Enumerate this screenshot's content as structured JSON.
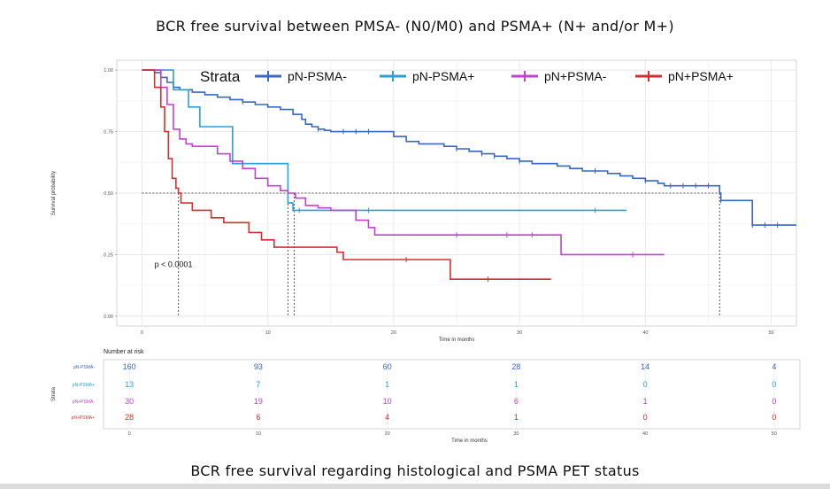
{
  "titles": {
    "top": "BCR free survival between PMSA- (N0/M0) and PSMA+ (N+ and/or M+)",
    "bottom": "BCR free survival regarding histological and PSMA PET status"
  },
  "chart_data": [
    {
      "type": "line",
      "subtype": "kaplan-meier",
      "xlabel": "Time in months",
      "ylabel": "Survival probability",
      "xlim": [
        -2,
        52
      ],
      "ylim": [
        0,
        1
      ],
      "xticks": [
        "0",
        "10",
        "20",
        "30",
        "40",
        "50"
      ],
      "yticks": [
        "0.00",
        "0.25",
        "0.50",
        "0.75",
        "1.00"
      ],
      "grid": true,
      "legend": {
        "title": "Strata",
        "placement": "top"
      },
      "annotation": "p < 0.0001",
      "median_line": 0.5,
      "medians": [
        2.9,
        11.6,
        12.1,
        45.9
      ],
      "series": [
        {
          "name": "pN-PSMA-",
          "color": "#3a66c4",
          "steps": [
            [
              0,
              1.0
            ],
            [
              1,
              0.99
            ],
            [
              1.5,
              0.97
            ],
            [
              2,
              0.95
            ],
            [
              2.5,
              0.93
            ],
            [
              3,
              0.92
            ],
            [
              4,
              0.91
            ],
            [
              5,
              0.9
            ],
            [
              6,
              0.89
            ],
            [
              7,
              0.88
            ],
            [
              8,
              0.87
            ],
            [
              9,
              0.86
            ],
            [
              10,
              0.85
            ],
            [
              11,
              0.84
            ],
            [
              12,
              0.82
            ],
            [
              12.7,
              0.8
            ],
            [
              13,
              0.78
            ],
            [
              13.5,
              0.77
            ],
            [
              14,
              0.76
            ],
            [
              14.5,
              0.755
            ],
            [
              15,
              0.75
            ],
            [
              19,
              0.75
            ],
            [
              20,
              0.73
            ],
            [
              21,
              0.71
            ],
            [
              22,
              0.7
            ],
            [
              24,
              0.69
            ],
            [
              25,
              0.68
            ],
            [
              26,
              0.67
            ],
            [
              27,
              0.66
            ],
            [
              28,
              0.65
            ],
            [
              29,
              0.64
            ],
            [
              30,
              0.63
            ],
            [
              31,
              0.62
            ],
            [
              32,
              0.62
            ],
            [
              33,
              0.61
            ],
            [
              34,
              0.6
            ],
            [
              35,
              0.59
            ],
            [
              37,
              0.58
            ],
            [
              38,
              0.57
            ],
            [
              39,
              0.56
            ],
            [
              40,
              0.55
            ],
            [
              41,
              0.54
            ],
            [
              41.5,
              0.53
            ],
            [
              45.9,
              0.5
            ],
            [
              46,
              0.47
            ],
            [
              48.5,
              0.37
            ],
            [
              52,
              0.37
            ]
          ],
          "censor": [
            8,
            14,
            16,
            17,
            18,
            25,
            27,
            28,
            30,
            36,
            40,
            42,
            43,
            44,
            45,
            46,
            48.5,
            49.5,
            50.5
          ]
        },
        {
          "name": "pN-PSMA+",
          "color": "#2b9fd6",
          "steps": [
            [
              0,
              1.0
            ],
            [
              2.5,
              0.92
            ],
            [
              3.5,
              0.92
            ],
            [
              3.7,
              0.85
            ],
            [
              4.5,
              0.85
            ],
            [
              4.6,
              0.77
            ],
            [
              7,
              0.77
            ],
            [
              7.2,
              0.62
            ],
            [
              11,
              0.62
            ],
            [
              11.6,
              0.46
            ],
            [
              12,
              0.43
            ],
            [
              38.5,
              0.43
            ]
          ],
          "censor": [
            12.5,
            18,
            36
          ]
        },
        {
          "name": "pN+PSMA-",
          "color": "#c43fd3",
          "steps": [
            [
              0,
              1.0
            ],
            [
              1.5,
              0.93
            ],
            [
              2,
              0.86
            ],
            [
              2.5,
              0.76
            ],
            [
              3,
              0.72
            ],
            [
              3.5,
              0.7
            ],
            [
              4,
              0.69
            ],
            [
              5,
              0.69
            ],
            [
              6,
              0.66
            ],
            [
              7,
              0.63
            ],
            [
              8,
              0.6
            ],
            [
              9,
              0.56
            ],
            [
              10,
              0.53
            ],
            [
              11,
              0.51
            ],
            [
              11.6,
              0.5
            ],
            [
              12.2,
              0.48
            ],
            [
              13,
              0.45
            ],
            [
              14,
              0.44
            ],
            [
              15,
              0.43
            ],
            [
              17,
              0.39
            ],
            [
              18,
              0.36
            ],
            [
              18.5,
              0.33
            ],
            [
              33,
              0.33
            ],
            [
              33.3,
              0.25
            ],
            [
              41.5,
              0.25
            ]
          ],
          "censor": [
            25,
            29,
            31,
            39
          ]
        },
        {
          "name": "pN+PSMA+",
          "color": "#d23030",
          "steps": [
            [
              0,
              1.0
            ],
            [
              1,
              0.93
            ],
            [
              1.5,
              0.85
            ],
            [
              1.8,
              0.75
            ],
            [
              2.1,
              0.64
            ],
            [
              2.4,
              0.56
            ],
            [
              2.7,
              0.52
            ],
            [
              2.9,
              0.5
            ],
            [
              3.1,
              0.46
            ],
            [
              4,
              0.43
            ],
            [
              5.5,
              0.4
            ],
            [
              6.5,
              0.38
            ],
            [
              8.5,
              0.34
            ],
            [
              9.5,
              0.31
            ],
            [
              10.5,
              0.28
            ],
            [
              15,
              0.28
            ],
            [
              15.5,
              0.26
            ],
            [
              16,
              0.23
            ],
            [
              24,
              0.23
            ],
            [
              24.5,
              0.15
            ],
            [
              32.5,
              0.15
            ]
          ],
          "censor": [
            21,
            27.5
          ]
        }
      ]
    },
    {
      "type": "table",
      "title": "Number at risk",
      "xlabel": "Time in months",
      "ylabel": "Strata",
      "columns": [
        "0",
        "10",
        "20",
        "30",
        "40",
        "50"
      ],
      "rows": [
        {
          "name": "pN-PSMA-",
          "color": "#3a66c4",
          "values": [
            "160",
            "93",
            "60",
            "28",
            "14",
            "4"
          ]
        },
        {
          "name": "pN-PSMA+",
          "color": "#2b9fd6",
          "values": [
            "13",
            "7",
            "1",
            "1",
            "0",
            "0"
          ]
        },
        {
          "name": "pN+PSMA-",
          "color": "#c43fd3",
          "values": [
            "30",
            "19",
            "10",
            "6",
            "1",
            "0"
          ]
        },
        {
          "name": "pN+PSMA+",
          "color": "#d23030",
          "values": [
            "28",
            "6",
            "4",
            "1",
            "0",
            "0"
          ]
        }
      ]
    }
  ]
}
